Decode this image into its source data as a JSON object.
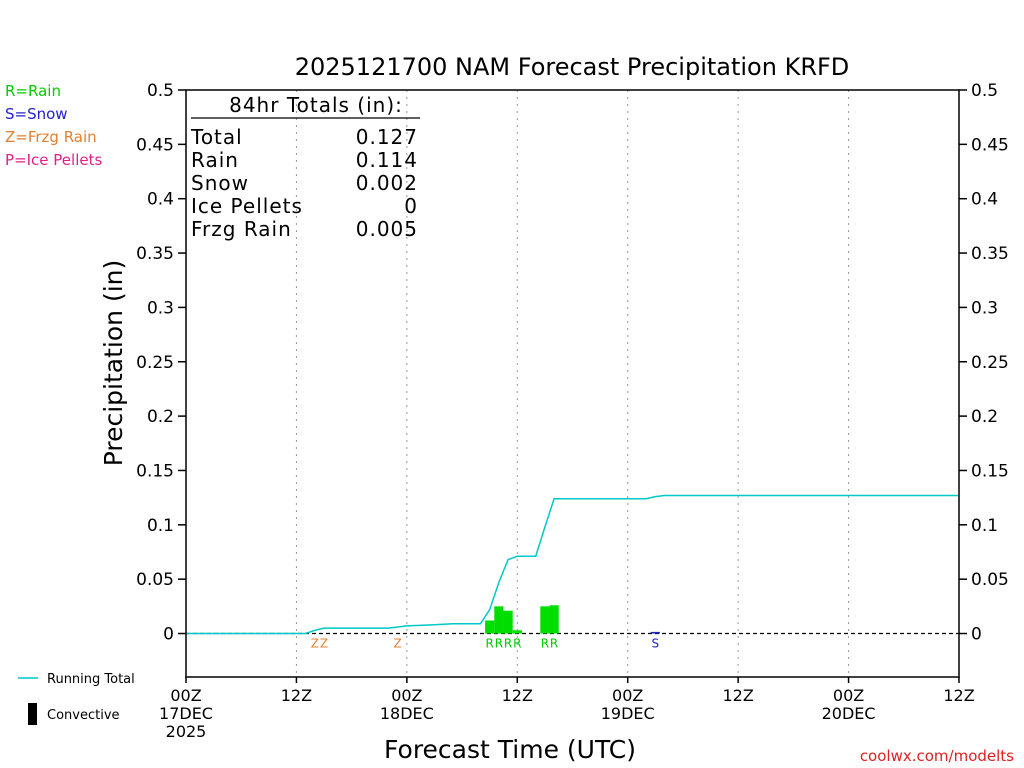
{
  "chart_data": {
    "type": "bar",
    "title": "2025121700 NAM Forecast Precipitation KRFD",
    "xlabel": "Forecast Time (UTC)",
    "ylabel": "Precipitation (in)",
    "ylim": [
      -0.04,
      0.5
    ],
    "xlim_hours": [
      0,
      84
    ],
    "yticks": [
      "0",
      "0.05",
      "0.1",
      "0.15",
      "0.2",
      "0.25",
      "0.3",
      "0.35",
      "0.4",
      "0.45",
      "0.5"
    ],
    "xticks": [
      {
        "hour": 0,
        "lines": [
          "00Z",
          "17DEC",
          "2025"
        ]
      },
      {
        "hour": 12,
        "lines": [
          "12Z"
        ]
      },
      {
        "hour": 24,
        "lines": [
          "00Z",
          "18DEC"
        ]
      },
      {
        "hour": 36,
        "lines": [
          "12Z"
        ]
      },
      {
        "hour": 48,
        "lines": [
          "00Z",
          "19DEC"
        ]
      },
      {
        "hour": 60,
        "lines": [
          "12Z"
        ]
      },
      {
        "hour": 72,
        "lines": [
          "00Z",
          "20DEC"
        ]
      },
      {
        "hour": 84,
        "lines": [
          "12Z"
        ]
      }
    ],
    "gridlines_hours": [
      12,
      24,
      36,
      48,
      60,
      72
    ],
    "bars": [
      {
        "hour": 33,
        "value": 0.012,
        "color": "#00dd00"
      },
      {
        "hour": 34,
        "value": 0.025,
        "color": "#00dd00"
      },
      {
        "hour": 35,
        "value": 0.021,
        "color": "#00dd00"
      },
      {
        "hour": 36,
        "value": 0.003,
        "color": "#00dd00"
      },
      {
        "hour": 39,
        "value": 0.025,
        "color": "#00dd00"
      },
      {
        "hour": 40,
        "value": 0.026,
        "color": "#00dd00"
      },
      {
        "hour": 51,
        "value": 0.0015,
        "color": "#2222cc"
      }
    ],
    "running_total": {
      "name": "Running Total",
      "color": "#00c8c8",
      "x": [
        0,
        13,
        14,
        15,
        20,
        22,
        23,
        24,
        27,
        29,
        30,
        32,
        33,
        34,
        35,
        36,
        37,
        38,
        39,
        40,
        50,
        51,
        52,
        84
      ],
      "y": [
        0,
        0,
        0.003,
        0.005,
        0.005,
        0.005,
        0.006,
        0.007,
        0.008,
        0.009,
        0.009,
        0.009,
        0.022,
        0.047,
        0.068,
        0.071,
        0.071,
        0.071,
        0.098,
        0.124,
        0.124,
        0.126,
        0.127,
        0.127
      ]
    },
    "ptype_markers": [
      {
        "hour": 14,
        "text": "Z",
        "color": "#e08030"
      },
      {
        "hour": 15,
        "text": "Z",
        "color": "#e08030"
      },
      {
        "hour": 23,
        "text": "Z",
        "color": "#e08030"
      },
      {
        "hour": 33,
        "text": "R",
        "color": "#00cc00"
      },
      {
        "hour": 34,
        "text": "R",
        "color": "#00cc00"
      },
      {
        "hour": 35,
        "text": "R",
        "color": "#00cc00"
      },
      {
        "hour": 36,
        "text": "R",
        "color": "#00cc00"
      },
      {
        "hour": 39,
        "text": "R",
        "color": "#00cc00"
      },
      {
        "hour": 40,
        "text": "R",
        "color": "#00cc00"
      },
      {
        "hour": 51,
        "text": "S",
        "color": "#2222cc"
      }
    ],
    "totals_box": {
      "heading": "84hr Totals (in):",
      "rows": [
        {
          "label": "Total",
          "value": "0.127"
        },
        {
          "label": "Rain",
          "value": "0.114"
        },
        {
          "label": "Snow",
          "value": "0.002"
        },
        {
          "label": "Ice Pellets",
          "value": "0"
        },
        {
          "label": "Frzg Rain",
          "value": "0.005"
        }
      ]
    },
    "ptype_legend": [
      {
        "text": "R=Rain",
        "color": "#00cc00"
      },
      {
        "text": "S=Snow",
        "color": "#2222cc"
      },
      {
        "text": "Z=Frzg Rain",
        "color": "#e08030"
      },
      {
        "text": "P=Ice Pellets",
        "color": "#e0208a"
      }
    ],
    "series_legend": [
      {
        "text": "Running Total",
        "kind": "line",
        "color": "#00c8c8"
      },
      {
        "text": "Convective",
        "kind": "bar",
        "color": "#000000"
      }
    ],
    "credit": "coolwx.com/modelts",
    "credit_color": "#dd2222"
  }
}
